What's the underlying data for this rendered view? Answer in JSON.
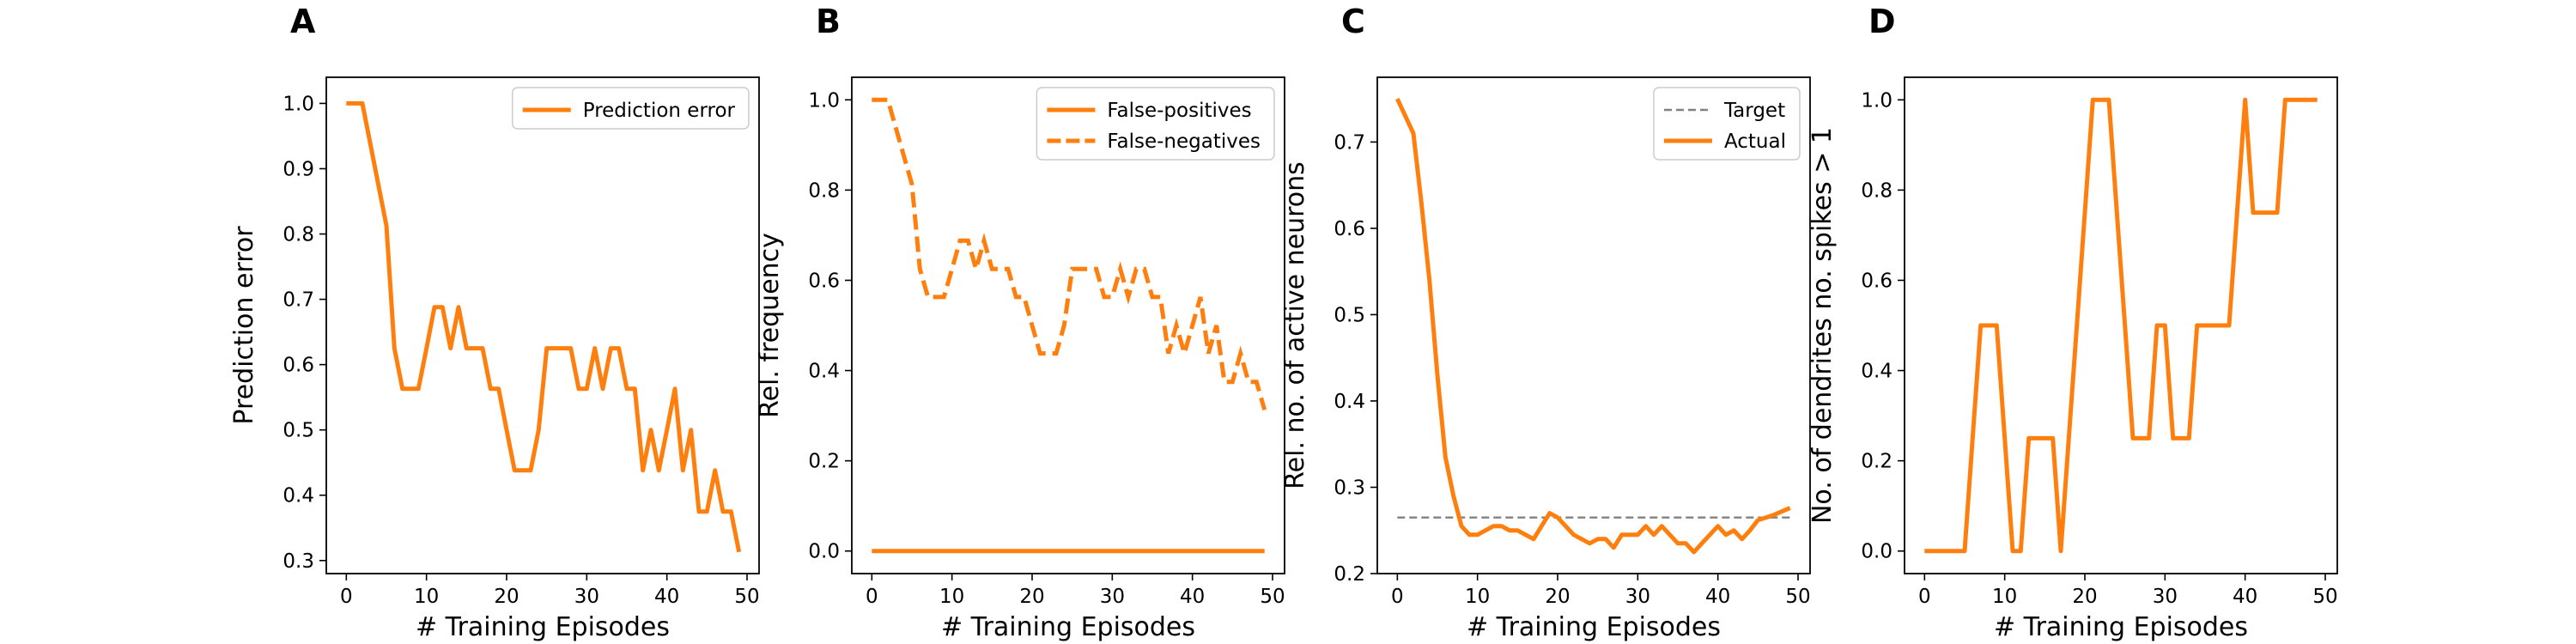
{
  "colors": {
    "line": "#ff7f0e",
    "target": "#808080",
    "axis": "#000000"
  },
  "chart_data": [
    {
      "panel": "A",
      "type": "line",
      "xlabel": "# Training Episodes",
      "ylabel": "Prediction error",
      "xlim": [
        -2.5,
        51.5
      ],
      "ylim": [
        0.28,
        1.04
      ],
      "xticks": [
        0,
        10,
        20,
        30,
        40,
        50
      ],
      "yticks": [
        0.3,
        0.4,
        0.5,
        0.6,
        0.7,
        0.8,
        0.9,
        1.0
      ],
      "ytick_labels": [
        "0.3",
        "0.4",
        "0.5",
        "0.6",
        "0.7",
        "0.8",
        "0.9",
        "1.0"
      ],
      "legend": {
        "position": "upper-right"
      },
      "series": [
        {
          "name": "Prediction error",
          "style": "solid",
          "color": "#ff7f0e",
          "x": [
            0,
            1,
            2,
            3,
            4,
            5,
            6,
            7,
            8,
            9,
            10,
            11,
            12,
            13,
            14,
            15,
            16,
            17,
            18,
            19,
            20,
            21,
            22,
            23,
            24,
            25,
            26,
            27,
            28,
            29,
            30,
            31,
            32,
            33,
            34,
            35,
            36,
            37,
            38,
            39,
            40,
            41,
            42,
            43,
            44,
            45,
            46,
            47,
            48,
            49
          ],
          "y": [
            1.0,
            1.0,
            1.0,
            0.938,
            0.875,
            0.813,
            0.625,
            0.563,
            0.563,
            0.563,
            0.625,
            0.688,
            0.688,
            0.625,
            0.688,
            0.625,
            0.625,
            0.625,
            0.563,
            0.563,
            0.5,
            0.438,
            0.438,
            0.438,
            0.5,
            0.625,
            0.625,
            0.625,
            0.625,
            0.563,
            0.563,
            0.625,
            0.563,
            0.625,
            0.625,
            0.563,
            0.563,
            0.438,
            0.5,
            0.438,
            0.5,
            0.563,
            0.438,
            0.5,
            0.375,
            0.375,
            0.438,
            0.375,
            0.375,
            0.313
          ]
        }
      ]
    },
    {
      "panel": "B",
      "type": "line",
      "xlabel": "# Training Episodes",
      "ylabel": "Rel. frequency",
      "xlim": [
        -2.5,
        51.5
      ],
      "ylim": [
        -0.05,
        1.05
      ],
      "xticks": [
        0,
        10,
        20,
        30,
        40,
        50
      ],
      "yticks": [
        0.0,
        0.2,
        0.4,
        0.6,
        0.8,
        1.0
      ],
      "ytick_labels": [
        "0.0",
        "0.2",
        "0.4",
        "0.6",
        "0.8",
        "1.0"
      ],
      "legend": {
        "position": "upper-right"
      },
      "series": [
        {
          "name": "False-positives",
          "style": "solid",
          "color": "#ff7f0e",
          "x": [
            0,
            49
          ],
          "y": [
            0,
            0
          ]
        },
        {
          "name": "False-negatives",
          "style": "dashed",
          "color": "#ff7f0e",
          "x": [
            0,
            1,
            2,
            3,
            4,
            5,
            6,
            7,
            8,
            9,
            10,
            11,
            12,
            13,
            14,
            15,
            16,
            17,
            18,
            19,
            20,
            21,
            22,
            23,
            24,
            25,
            26,
            27,
            28,
            29,
            30,
            31,
            32,
            33,
            34,
            35,
            36,
            37,
            38,
            39,
            40,
            41,
            42,
            43,
            44,
            45,
            46,
            47,
            48,
            49
          ],
          "y": [
            1.0,
            1.0,
            1.0,
            0.938,
            0.875,
            0.813,
            0.625,
            0.563,
            0.563,
            0.563,
            0.625,
            0.688,
            0.688,
            0.625,
            0.688,
            0.625,
            0.625,
            0.625,
            0.563,
            0.563,
            0.5,
            0.438,
            0.438,
            0.438,
            0.5,
            0.625,
            0.625,
            0.625,
            0.625,
            0.563,
            0.563,
            0.625,
            0.563,
            0.625,
            0.625,
            0.563,
            0.563,
            0.438,
            0.5,
            0.438,
            0.5,
            0.563,
            0.438,
            0.5,
            0.375,
            0.375,
            0.438,
            0.375,
            0.375,
            0.313
          ]
        }
      ]
    },
    {
      "panel": "C",
      "type": "line",
      "xlabel": "# Training Episodes",
      "ylabel": "Rel. no. of active neurons",
      "xlim": [
        -2.5,
        51.5
      ],
      "ylim": [
        0.2,
        0.775
      ],
      "xticks": [
        0,
        10,
        20,
        30,
        40,
        50
      ],
      "yticks": [
        0.2,
        0.3,
        0.4,
        0.5,
        0.6,
        0.7
      ],
      "ytick_labels": [
        "0.2",
        "0.3",
        "0.4",
        "0.5",
        "0.6",
        "0.7"
      ],
      "legend": {
        "position": "upper-right"
      },
      "series": [
        {
          "name": "Target",
          "style": "dashed",
          "color": "#808080",
          "x": [
            0,
            49
          ],
          "y": [
            0.265,
            0.265
          ]
        },
        {
          "name": "Actual",
          "style": "solid",
          "color": "#ff7f0e",
          "x": [
            0,
            1,
            2,
            3,
            4,
            5,
            6,
            7,
            8,
            9,
            10,
            11,
            12,
            13,
            14,
            15,
            16,
            17,
            18,
            19,
            20,
            21,
            22,
            23,
            24,
            25,
            26,
            27,
            28,
            29,
            30,
            31,
            32,
            33,
            34,
            35,
            36,
            37,
            38,
            39,
            40,
            41,
            42,
            43,
            44,
            45,
            46,
            47,
            48,
            49
          ],
          "y": [
            0.75,
            0.73,
            0.71,
            0.63,
            0.54,
            0.43,
            0.335,
            0.29,
            0.255,
            0.245,
            0.245,
            0.25,
            0.255,
            0.255,
            0.25,
            0.25,
            0.245,
            0.24,
            0.255,
            0.27,
            0.265,
            0.255,
            0.245,
            0.24,
            0.235,
            0.24,
            0.24,
            0.23,
            0.245,
            0.245,
            0.245,
            0.255,
            0.245,
            0.255,
            0.245,
            0.235,
            0.235,
            0.225,
            0.235,
            0.245,
            0.255,
            0.245,
            0.25,
            0.24,
            0.25,
            0.262,
            0.265,
            0.268,
            0.272,
            0.276
          ]
        }
      ]
    },
    {
      "panel": "D",
      "type": "line",
      "xlabel": "# Training Episodes",
      "ylabel": "No. of dendrites no. spikes > 1",
      "xlim": [
        -2.5,
        51.5
      ],
      "ylim": [
        -0.05,
        1.05
      ],
      "xticks": [
        0,
        10,
        20,
        30,
        40,
        50
      ],
      "yticks": [
        0.0,
        0.2,
        0.4,
        0.6,
        0.8,
        1.0
      ],
      "ytick_labels": [
        "0.0",
        "0.2",
        "0.4",
        "0.6",
        "0.8",
        "1.0"
      ],
      "series": [
        {
          "style": "solid",
          "color": "#ff7f0e",
          "x": [
            0,
            1,
            2,
            3,
            4,
            5,
            6,
            7,
            8,
            9,
            10,
            11,
            12,
            13,
            14,
            15,
            16,
            17,
            18,
            19,
            20,
            21,
            22,
            23,
            24,
            25,
            26,
            27,
            28,
            29,
            30,
            31,
            32,
            33,
            34,
            35,
            36,
            37,
            38,
            39,
            40,
            41,
            42,
            43,
            44,
            45,
            46,
            47,
            48,
            49
          ],
          "y": [
            0,
            0,
            0,
            0,
            0,
            0,
            0.25,
            0.5,
            0.5,
            0.5,
            0.25,
            0,
            0,
            0.25,
            0.25,
            0.25,
            0.25,
            0,
            0.25,
            0.5,
            0.75,
            1.0,
            1.0,
            1.0,
            0.75,
            0.5,
            0.25,
            0.25,
            0.25,
            0.5,
            0.5,
            0.25,
            0.25,
            0.25,
            0.5,
            0.5,
            0.5,
            0.5,
            0.5,
            0.75,
            1.0,
            0.75,
            0.75,
            0.75,
            0.75,
            1.0,
            1.0,
            1.0,
            1.0,
            1.0
          ]
        }
      ]
    }
  ]
}
